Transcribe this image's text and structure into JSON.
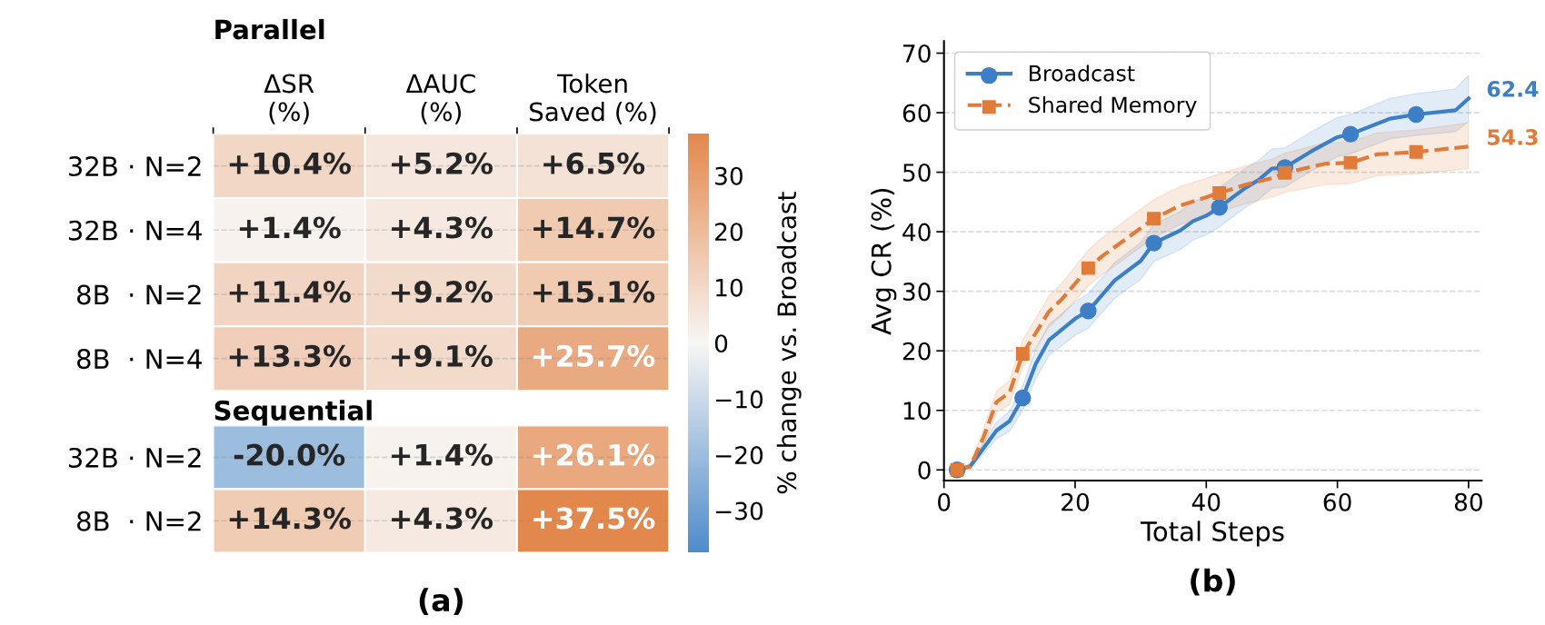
{
  "chart_data": [
    {
      "type": "heatmap",
      "title": "Parallel",
      "categories": [
        "ΔSR\n(%)",
        "ΔAUC\n(%)",
        "Token\nSaved (%)"
      ],
      "y_categories": [
        "32B · N=2",
        "32B · N=4",
        "8B  · N=2",
        "8B  · N=4"
      ],
      "cells": [
        [
          10.4,
          5.2,
          6.5
        ],
        [
          1.4,
          4.3,
          14.7
        ],
        [
          11.4,
          9.2,
          15.1
        ],
        [
          13.3,
          9.1,
          25.7
        ]
      ],
      "cell_labels": [
        [
          "+10.4%",
          "+5.2%",
          "+6.5%"
        ],
        [
          "+1.4%",
          "+4.3%",
          "+14.7%"
        ],
        [
          "+11.4%",
          "+9.2%",
          "+15.1%"
        ],
        [
          "+13.3%",
          "+9.1%",
          "+25.7%"
        ]
      ],
      "clim": [
        -37.5,
        37.5
      ],
      "cticks": [
        -30,
        -20,
        -10,
        0,
        10,
        20,
        30
      ],
      "clabel": "% change vs. Broadcast",
      "grid": "y"
    },
    {
      "type": "heatmap",
      "title": "Sequential",
      "categories": [
        null,
        null,
        null
      ],
      "y_categories": [
        "32B · N=2",
        "8B  · N=2"
      ],
      "cells": [
        [
          -20.0,
          1.4,
          26.1
        ],
        [
          14.3,
          4.3,
          37.5
        ]
      ],
      "cell_labels": [
        [
          "-20.0%",
          "+1.4%",
          "+26.1%"
        ],
        [
          "+14.3%",
          "+4.3%",
          "+37.5%"
        ]
      ],
      "tick_labels": "y",
      "grid": "y",
      "annotations": [
        "(a)"
      ]
    },
    {
      "type": "line",
      "xlabel": "Total Steps",
      "ylabel": "Avg CR (%)",
      "xlim": [
        0,
        82
      ],
      "ylim": [
        -1.8,
        72
      ],
      "xticks": [
        0,
        20,
        40,
        60,
        80
      ],
      "yticks": [
        0,
        10,
        20,
        30,
        40,
        50,
        60,
        70
      ],
      "grid": "y",
      "legend": "top left",
      "series": [
        {
          "name": "Broadcast",
          "type": "scatter",
          "color": "#3d7fc6",
          "marker": "circle",
          "x": [
            2,
            12,
            22,
            32,
            42,
            52,
            62,
            72
          ],
          "values": [
            0,
            12.1,
            26.7,
            38.1,
            44.1,
            50.8,
            56.4,
            59.7
          ]
        },
        {
          "color": "#3d7fc6",
          "line_style": "solid",
          "x": [
            2,
            4,
            8,
            10,
            12,
            14,
            16,
            20,
            22,
            26,
            30,
            32,
            36,
            38,
            40,
            42,
            46,
            48,
            50,
            52,
            56,
            60,
            62,
            68,
            72,
            78,
            80
          ],
          "values": [
            0,
            0.6,
            6.6,
            8.2,
            12.1,
            17.8,
            21.8,
            25.4,
            26.7,
            31.8,
            35.1,
            38.1,
            40.2,
            41.8,
            42.7,
            44.1,
            47.4,
            48.7,
            50.6,
            50.8,
            53.5,
            55.9,
            56.4,
            59.0,
            59.7,
            60.4,
            62.4
          ],
          "lower": [
            0,
            0.2,
            5.2,
            6.5,
            10,
            15.3,
            19.2,
            22.6,
            23.8,
            28.8,
            32,
            35,
            37,
            38.6,
            39.5,
            40.8,
            44.1,
            45.4,
            47.3,
            47.5,
            50.2,
            52.6,
            53.1,
            55.6,
            56.2,
            56.8,
            58.5
          ],
          "upper": [
            0,
            1,
            8,
            9.9,
            14.2,
            20.3,
            24.4,
            28.2,
            29.6,
            34.8,
            38.2,
            41.2,
            43.4,
            45,
            45.9,
            47.4,
            50.7,
            52,
            53.9,
            54.1,
            56.8,
            59.2,
            59.7,
            62.4,
            63.2,
            64,
            66.3
          ]
        },
        {
          "name": "Shared Memory",
          "type": "scatter",
          "color": "#e07b39",
          "marker": "square",
          "x": [
            2,
            12,
            22,
            32,
            42,
            52,
            62,
            72
          ],
          "values": [
            0,
            19.5,
            33.9,
            42.2,
            46.5,
            49.9,
            51.6,
            53.4
          ]
        },
        {
          "color": "#e07b39",
          "line_style": "dashed",
          "x": [
            2,
            4,
            6,
            8,
            10,
            12,
            14,
            16,
            18,
            22,
            24,
            28,
            32,
            36,
            42,
            46,
            50,
            52,
            58,
            62,
            66,
            72,
            80
          ],
          "values": [
            0,
            0.6,
            5.4,
            11.4,
            13.0,
            19.5,
            23.0,
            26.6,
            28.7,
            33.9,
            35.8,
            39.0,
            42.2,
            44.4,
            46.5,
            47.9,
            49.0,
            49.9,
            51.4,
            51.6,
            53.0,
            53.4,
            54.3
          ],
          "lower": [
            0,
            0.2,
            4,
            9.6,
            11,
            17.2,
            20.5,
            24,
            26,
            30.9,
            32.7,
            35.8,
            39,
            41.2,
            43.3,
            44.7,
            45.8,
            46.6,
            47.9,
            48.1,
            49.4,
            49.7,
            50.6
          ],
          "upper": [
            0,
            1,
            6.8,
            13.2,
            15,
            21.8,
            25.5,
            29.2,
            31.4,
            36.9,
            38.9,
            42.2,
            45.4,
            47.6,
            49.7,
            51.1,
            52.2,
            53.2,
            54.9,
            55.1,
            56.6,
            57.1,
            58.3
          ]
        }
      ],
      "annotations": [
        {
          "text": "62.4",
          "x": 80,
          "y": 62.4
        },
        {
          "text": "54.3",
          "x": 80,
          "y": 54.3
        },
        "(b)"
      ]
    }
  ]
}
